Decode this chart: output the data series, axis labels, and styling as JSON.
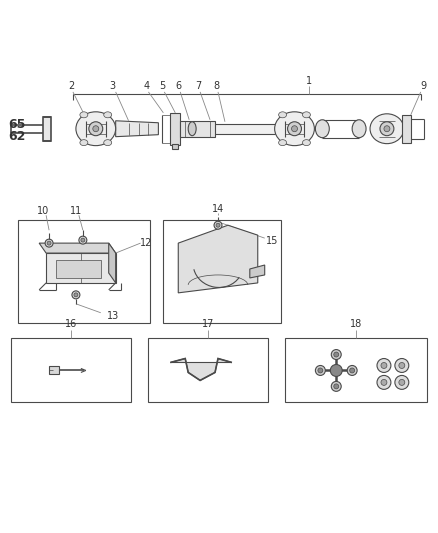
{
  "bg_color": "#ffffff",
  "line_color": "#4a4a4a",
  "label_color": "#333333",
  "figsize": [
    4.38,
    5.33
  ],
  "dpi": 100,
  "bracket_label": "1",
  "shaft_labels": [
    "2",
    "3",
    "4",
    "5",
    "6",
    "7",
    "8",
    "9"
  ],
  "box1_labels": [
    "10",
    "11",
    "12",
    "13"
  ],
  "box2_labels": [
    "14",
    "15"
  ],
  "box3_label": "16",
  "box4_label": "17",
  "box5_label": "18",
  "bold_labels": [
    "62",
    "65"
  ]
}
